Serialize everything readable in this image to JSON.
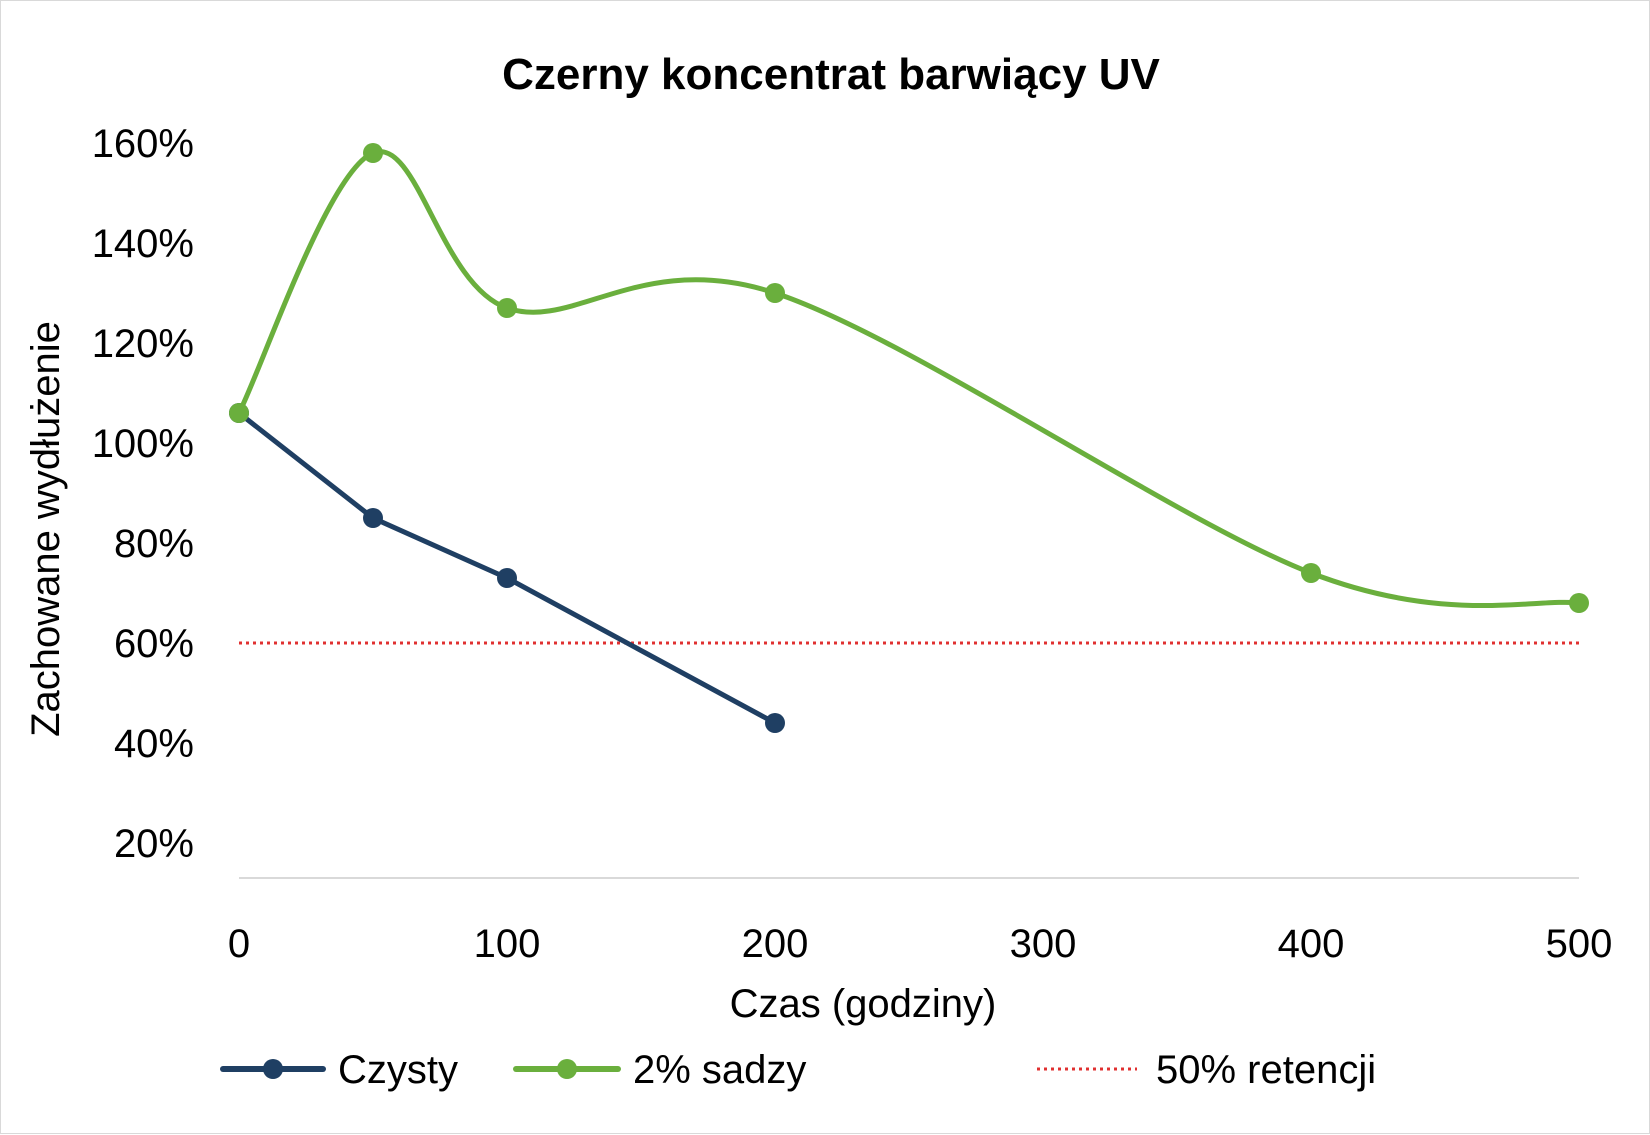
{
  "chart_data": {
    "type": "line",
    "title": "Czerny koncentrat barwiący UV",
    "xlabel": "Czas (godziny)",
    "ylabel": "Zachowane wydłużenie",
    "x_ticks": [
      "0",
      "100",
      "200",
      "300",
      "400",
      "500"
    ],
    "y_ticks": [
      "20%",
      "40%",
      "60%",
      "80%",
      "100%",
      "120%",
      "140%",
      "160%"
    ],
    "xlim": [
      0,
      500
    ],
    "ylim": [
      13,
      160
    ],
    "grid": false,
    "legend_position": "bottom",
    "series": [
      {
        "name": "Czysty",
        "color": "#1f3f63",
        "smooth": false,
        "marker": true,
        "x": [
          0,
          50,
          100,
          200
        ],
        "y": [
          106,
          85,
          73,
          44
        ]
      },
      {
        "name": "2% sadzy",
        "color": "#6aaf3d",
        "smooth": true,
        "marker": true,
        "x": [
          0,
          50,
          100,
          200,
          400,
          500
        ],
        "y": [
          106,
          158,
          127,
          130,
          74,
          68
        ]
      },
      {
        "name": "50% retencji",
        "color": "#e03030",
        "style": "dotted",
        "marker": false,
        "x": [
          0,
          500
        ],
        "y": [
          60,
          60
        ]
      }
    ]
  }
}
